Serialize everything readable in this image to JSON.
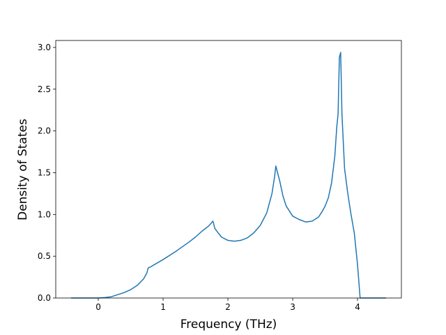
{
  "chart_data": {
    "type": "line",
    "x_label": "Frequency (THz)",
    "y_label": "Density of States",
    "xlim": [
      -0.656,
      4.677
    ],
    "ylim": [
      0,
      3.083
    ],
    "xticks": [
      0,
      1,
      2,
      3,
      4
    ],
    "yticks": [
      {
        "value": 0,
        "label": "0.0"
      },
      {
        "value": 0.5,
        "label": "0.5"
      },
      {
        "value": 1,
        "label": "1.0"
      },
      {
        "value": 1.5,
        "label": "1.5"
      },
      {
        "value": 2,
        "label": "2.0"
      },
      {
        "value": 2.5,
        "label": "2.5"
      },
      {
        "value": 3,
        "label": "3.0"
      }
    ],
    "x": [
      -0.42,
      0.0,
      0.1,
      0.2,
      0.3,
      0.4,
      0.5,
      0.6,
      0.7,
      0.75,
      0.77,
      0.8,
      1.0,
      1.2,
      1.4,
      1.5,
      1.6,
      1.7,
      1.77,
      1.8,
      1.9,
      2.0,
      2.1,
      2.2,
      2.3,
      2.4,
      2.5,
      2.6,
      2.68,
      2.72,
      2.74,
      2.8,
      2.85,
      2.9,
      3.0,
      3.1,
      3.2,
      3.3,
      3.4,
      3.45,
      3.5,
      3.55,
      3.6,
      3.65,
      3.68,
      3.7,
      3.72,
      3.74,
      3.76,
      3.8,
      3.85,
      3.9,
      3.95,
      4.0,
      4.04,
      4.44
    ],
    "series": [
      {
        "color": "#1f77b4",
        "values": [
          0,
          0,
          0.005,
          0.015,
          0.04,
          0.065,
          0.1,
          0.15,
          0.23,
          0.3,
          0.36,
          0.37,
          0.46,
          0.56,
          0.67,
          0.73,
          0.8,
          0.86,
          0.92,
          0.83,
          0.73,
          0.69,
          0.68,
          0.69,
          0.72,
          0.78,
          0.87,
          1.02,
          1.25,
          1.45,
          1.58,
          1.4,
          1.22,
          1.1,
          0.98,
          0.94,
          0.91,
          0.92,
          0.97,
          1.03,
          1.1,
          1.2,
          1.38,
          1.7,
          2.05,
          2.2,
          2.88,
          2.94,
          2.2,
          1.55,
          1.25,
          1.0,
          0.78,
          0.4,
          0,
          0
        ]
      }
    ]
  }
}
